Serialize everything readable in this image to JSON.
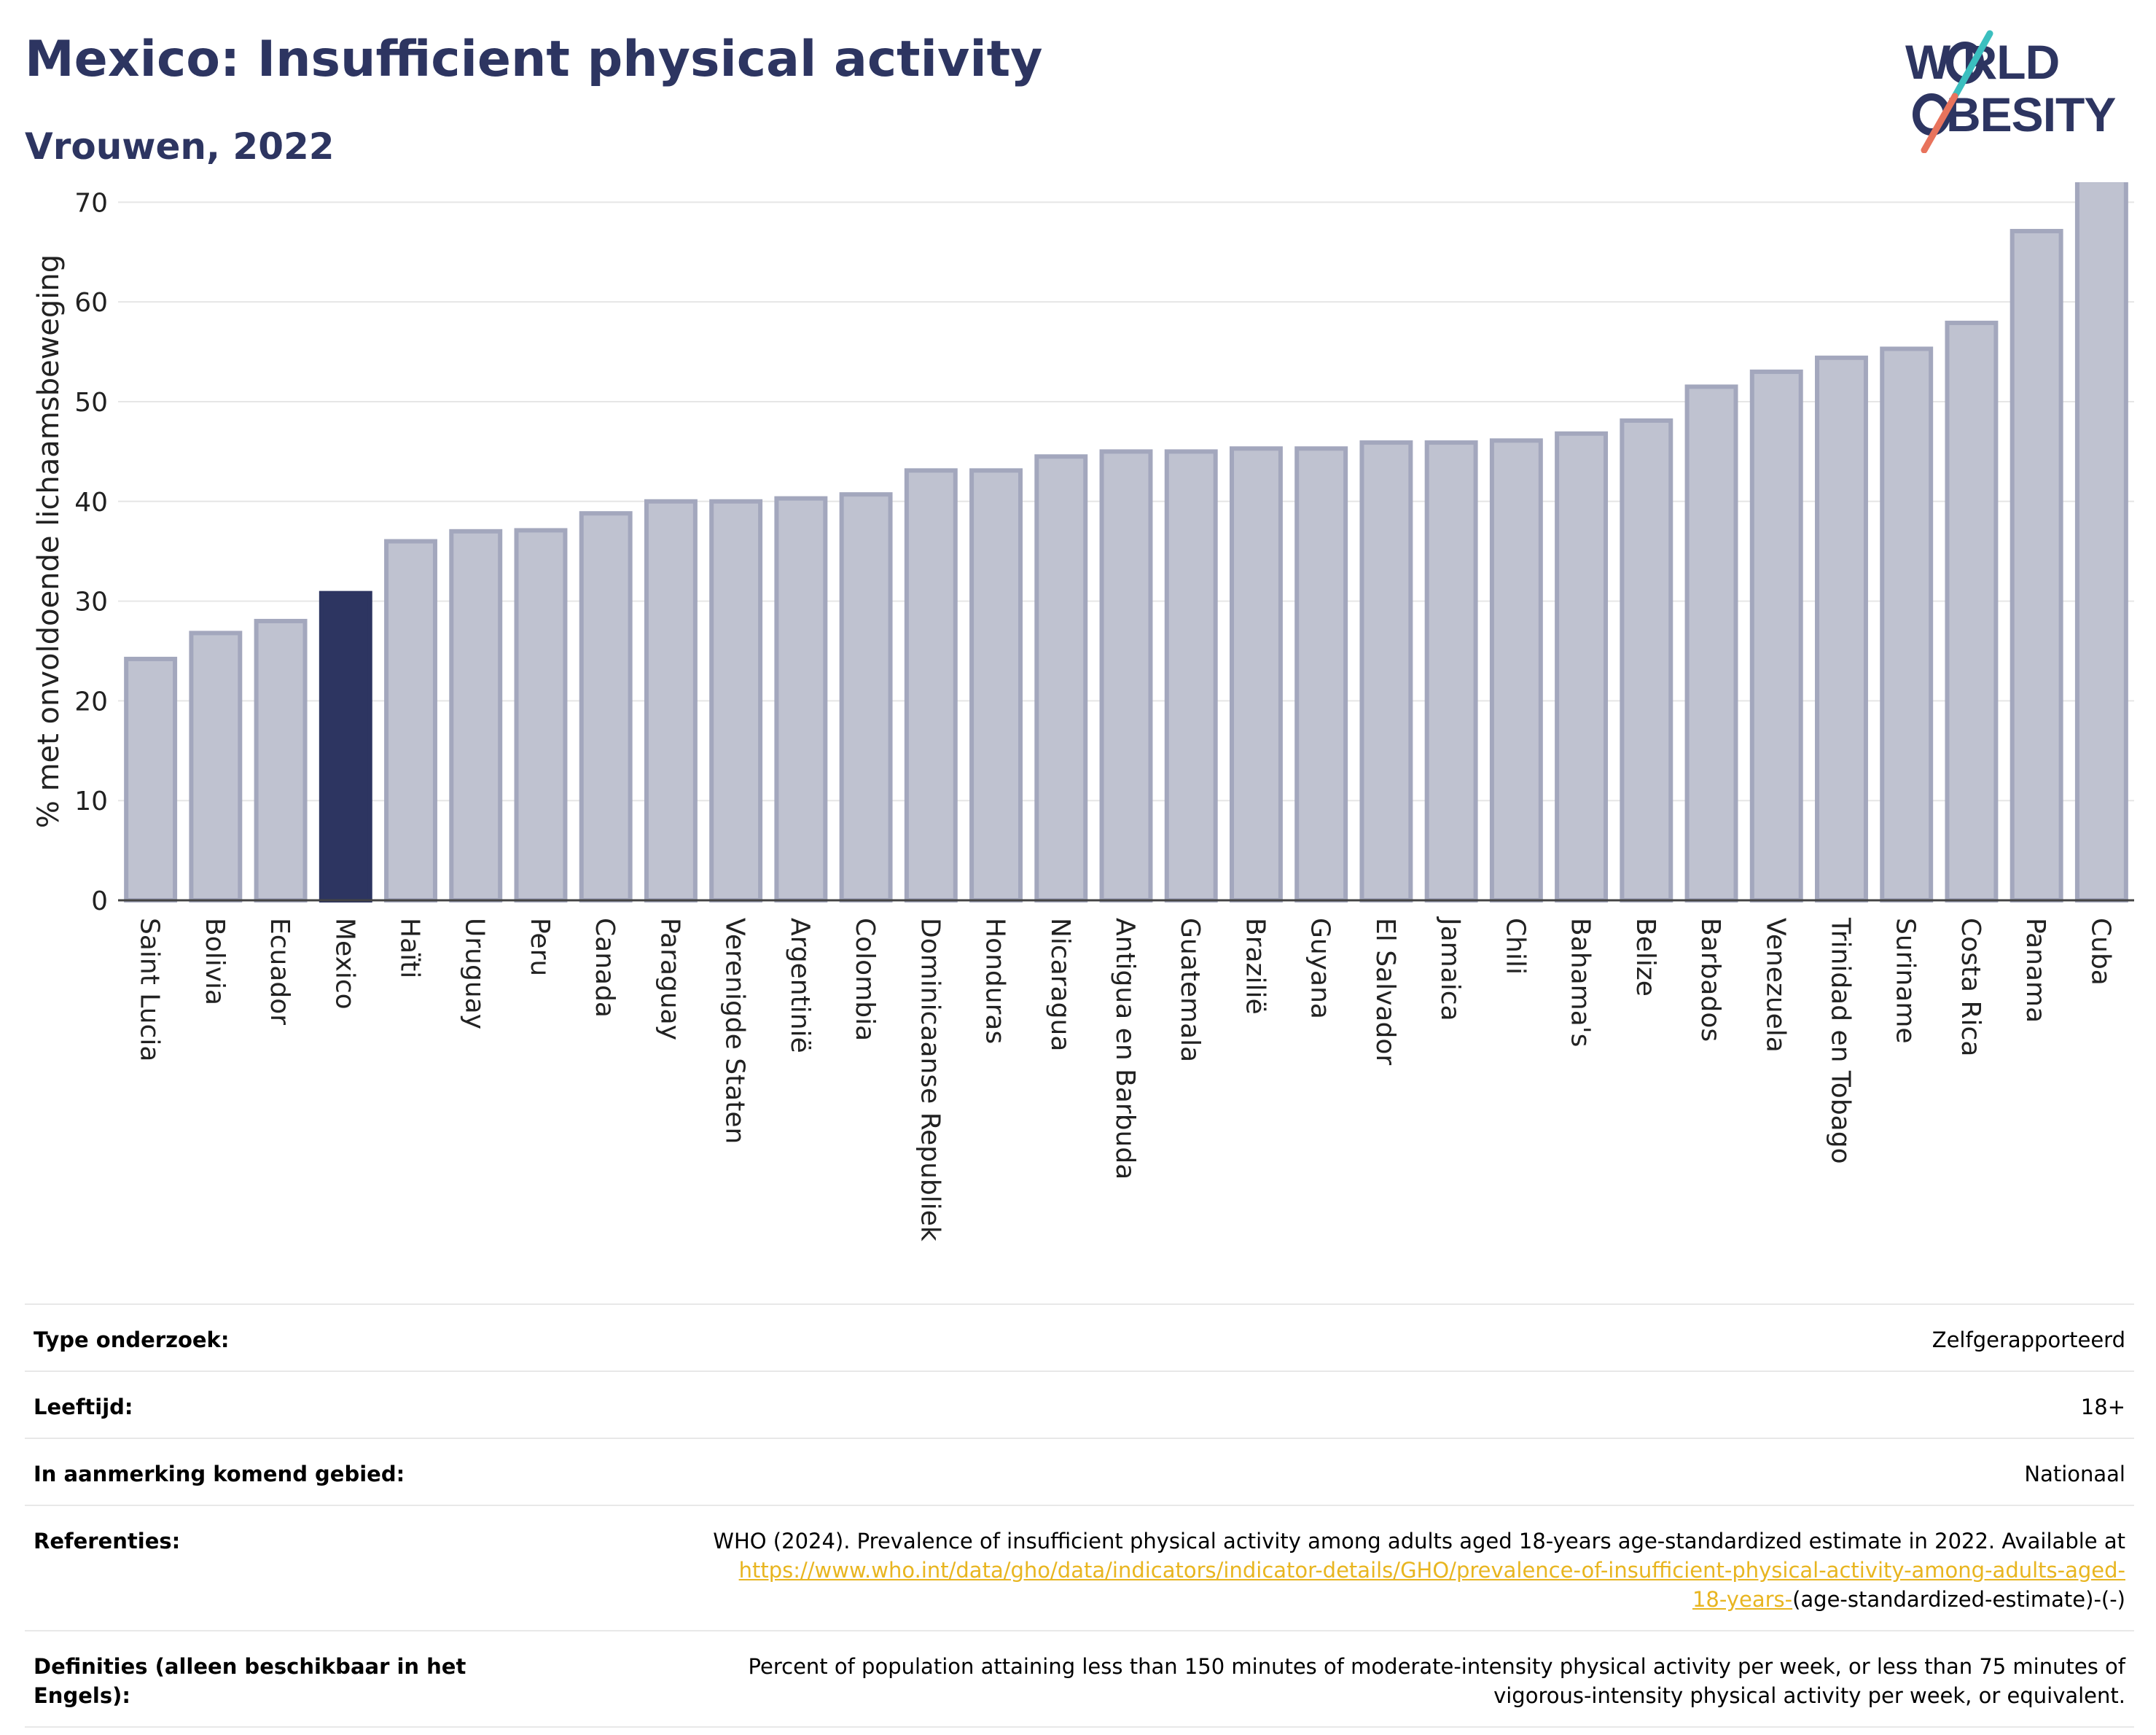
{
  "header": {
    "title": "Mexico: Insufficient physical activity",
    "subtitle": "Vrouwen, 2022"
  },
  "logo": {
    "line1": "W RLD",
    "line2": "BESITY",
    "colors": {
      "navy": "#2d3561",
      "teal": "#3bbfbf",
      "coral": "#e8735c"
    }
  },
  "chart_data": {
    "type": "bar",
    "title": "Mexico: Insufficient physical activity",
    "subtitle": "Vrouwen, 2022",
    "xlabel": "",
    "ylabel": "% met onvoldoende lichaamsbeweging",
    "ylim": [
      0,
      72
    ],
    "yticks": [
      0,
      10,
      20,
      30,
      40,
      50,
      60,
      70
    ],
    "grid": true,
    "highlight": "Mexico",
    "colors": {
      "bar": "#bfc2d0",
      "bar_edge": "#a3a7bd",
      "highlight": "#2d3561",
      "axis": "#444444",
      "grid": "#e6e6e6"
    },
    "categories": [
      "Saint Lucia",
      "Bolivia",
      "Ecuador",
      "Mexico",
      "Haïti",
      "Uruguay",
      "Peru",
      "Canada",
      "Paraguay",
      "Verenigde Staten",
      "Argentinië",
      "Colombia",
      "Dominicaanse Republiek",
      "Honduras",
      "Nicaragua",
      "Antigua en Barbuda",
      "Guatemala",
      "Brazilië",
      "Guyana",
      "El Salvador",
      "Jamaica",
      "Chili",
      "Bahama's",
      "Belize",
      "Barbados",
      "Venezuela",
      "Trinidad en Tobago",
      "Suriname",
      "Costa Rica",
      "Panama",
      "Cuba"
    ],
    "values": [
      24.2,
      26.8,
      28.0,
      30.8,
      36.0,
      37.0,
      37.1,
      38.8,
      40.0,
      40.0,
      40.3,
      40.7,
      43.1,
      43.1,
      44.5,
      45.0,
      45.0,
      45.3,
      45.3,
      45.9,
      45.9,
      46.1,
      46.8,
      48.1,
      51.5,
      53.0,
      54.4,
      55.3,
      57.9,
      67.1,
      72.2
    ]
  },
  "meta": {
    "rows": [
      {
        "label": "Type onderzoek:",
        "value": "Zelfgerapporteerd"
      },
      {
        "label": "Leeftijd:",
        "value": "18+"
      },
      {
        "label": "In aanmerking komend gebied:",
        "value": "Nationaal"
      }
    ],
    "references": {
      "label": "Referenties:",
      "text": "WHO (2024). Prevalence of insufficient physical activity among adults aged 18-years age-standardized estimate in 2022. Available at",
      "link_line1": "https://www.who.int/data/gho/data/indicators/indicator-details/GHO/prevalence-of-insufficient-physical-activity-among-adults-aged-",
      "link_line2": "18-years-",
      "suffix": "(age-standardized-estimate)-(-)"
    },
    "definitions": {
      "label_line1": "Definities (alleen beschikbaar in het",
      "label_line2": "Engels):",
      "line1": "Percent of population attaining less than 150 minutes of moderate-intensity physical activity per week, or less than 75 minutes of",
      "line2": "vigorous-intensity physical activity per week, or equivalent."
    }
  }
}
